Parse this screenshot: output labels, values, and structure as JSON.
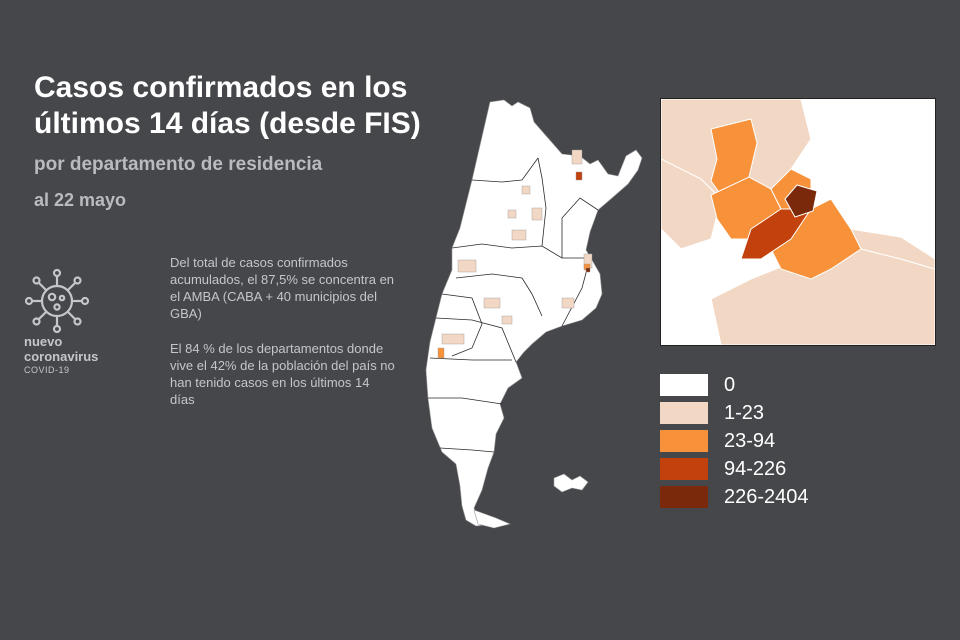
{
  "title": "Casos confirmados en los últimos 14 días (desde FIS)",
  "subtitle": "por departamento de residencia",
  "date": "al 22 mayo",
  "info": [
    "Del total de casos confirmados acumulados, el 87,5% se concentra en el AMBA (CABA + 40 municipios del GBA)",
    "El 84 % de los departamentos donde vive el 42% de la población del país no han tenido casos en los últimos 14 días"
  ],
  "brand": {
    "line1": "nuevo",
    "line2": "coronavirus",
    "line3": "COVID-19",
    "icon": "virus-icon"
  },
  "colors": {
    "background": "#46474b",
    "c0": "#ffffff",
    "c1": "#f2d8c4",
    "c2": "#f7913a",
    "c3": "#c2410c",
    "c4": "#7a2a0b"
  },
  "legend": [
    {
      "label": "0",
      "color": "#ffffff"
    },
    {
      "label": "1-23",
      "color": "#f2d8c4"
    },
    {
      "label": "23-94",
      "color": "#f7913a"
    },
    {
      "label": "94-226",
      "color": "#c2410c"
    },
    {
      "label": "226-2404",
      "color": "#7a2a0b"
    }
  ]
}
